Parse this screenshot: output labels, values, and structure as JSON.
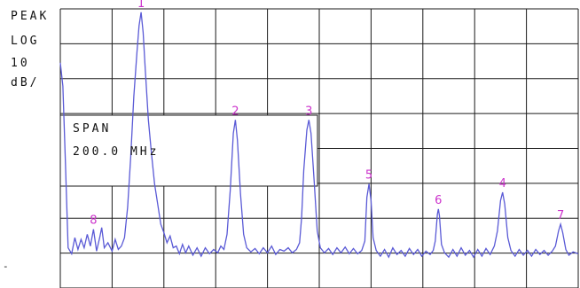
{
  "display": {
    "detector_label": "PEAK",
    "scale_label": "LOG",
    "scale_value": "10",
    "scale_unit": "dB/",
    "span_label": "SPAN",
    "span_value": "200.0 MHz",
    "reference_dash": "-"
  },
  "colors": {
    "background": "#ffffff",
    "grid": "#1a1a1a",
    "trace": "#5a5ad6",
    "marker": "#cc33cc"
  },
  "chart_data": {
    "type": "line",
    "title": "",
    "xlabel": "",
    "ylabel": "",
    "scale": "log 10 dB/div",
    "span": "200.0 MHz",
    "divisions": {
      "x": 10,
      "y": 8
    },
    "x_range_div": [
      0,
      10
    ],
    "y_range_div": [
      0,
      8
    ],
    "grid": true,
    "series": [
      {
        "points": [
          [
            0.0,
            5.8
          ],
          [
            0.05,
            5.1
          ],
          [
            0.1,
            2.8
          ],
          [
            0.15,
            0.3
          ],
          [
            0.22,
            0.12
          ],
          [
            0.28,
            0.6
          ],
          [
            0.34,
            0.25
          ],
          [
            0.4,
            0.55
          ],
          [
            0.46,
            0.3
          ],
          [
            0.52,
            0.7
          ],
          [
            0.58,
            0.35
          ],
          [
            0.64,
            0.85
          ],
          [
            0.7,
            0.2
          ],
          [
            0.76,
            0.6
          ],
          [
            0.8,
            0.9
          ],
          [
            0.85,
            0.3
          ],
          [
            0.92,
            0.45
          ],
          [
            1.0,
            0.2
          ],
          [
            1.06,
            0.55
          ],
          [
            1.12,
            0.25
          ],
          [
            1.18,
            0.35
          ],
          [
            1.24,
            0.6
          ],
          [
            1.3,
            1.5
          ],
          [
            1.36,
            3.0
          ],
          [
            1.42,
            4.8
          ],
          [
            1.48,
            6.1
          ],
          [
            1.52,
            6.9
          ],
          [
            1.56,
            7.3
          ],
          [
            1.6,
            6.7
          ],
          [
            1.64,
            5.6
          ],
          [
            1.7,
            4.1
          ],
          [
            1.76,
            3.1
          ],
          [
            1.82,
            2.2
          ],
          [
            1.88,
            1.6
          ],
          [
            1.94,
            1.0
          ],
          [
            2.0,
            0.75
          ],
          [
            2.06,
            0.45
          ],
          [
            2.12,
            0.65
          ],
          [
            2.18,
            0.3
          ],
          [
            2.24,
            0.35
          ],
          [
            2.3,
            0.12
          ],
          [
            2.36,
            0.4
          ],
          [
            2.42,
            0.15
          ],
          [
            2.48,
            0.35
          ],
          [
            2.56,
            0.08
          ],
          [
            2.64,
            0.3
          ],
          [
            2.72,
            0.05
          ],
          [
            2.8,
            0.3
          ],
          [
            2.88,
            0.12
          ],
          [
            2.96,
            0.25
          ],
          [
            3.04,
            0.15
          ],
          [
            3.1,
            0.35
          ],
          [
            3.16,
            0.25
          ],
          [
            3.22,
            0.7
          ],
          [
            3.28,
            2.0
          ],
          [
            3.34,
            3.7
          ],
          [
            3.38,
            4.1
          ],
          [
            3.42,
            3.5
          ],
          [
            3.48,
            1.9
          ],
          [
            3.54,
            0.7
          ],
          [
            3.6,
            0.3
          ],
          [
            3.68,
            0.18
          ],
          [
            3.76,
            0.28
          ],
          [
            3.84,
            0.12
          ],
          [
            3.92,
            0.3
          ],
          [
            4.0,
            0.15
          ],
          [
            4.08,
            0.35
          ],
          [
            4.16,
            0.1
          ],
          [
            4.24,
            0.25
          ],
          [
            4.32,
            0.2
          ],
          [
            4.4,
            0.3
          ],
          [
            4.48,
            0.15
          ],
          [
            4.56,
            0.25
          ],
          [
            4.62,
            0.45
          ],
          [
            4.66,
            1.2
          ],
          [
            4.7,
            2.6
          ],
          [
            4.76,
            3.8
          ],
          [
            4.8,
            4.1
          ],
          [
            4.84,
            3.7
          ],
          [
            4.9,
            2.3
          ],
          [
            4.96,
            0.8
          ],
          [
            5.02,
            0.3
          ],
          [
            5.1,
            0.15
          ],
          [
            5.18,
            0.28
          ],
          [
            5.26,
            0.1
          ],
          [
            5.34,
            0.3
          ],
          [
            5.42,
            0.15
          ],
          [
            5.5,
            0.32
          ],
          [
            5.58,
            0.12
          ],
          [
            5.66,
            0.28
          ],
          [
            5.74,
            0.12
          ],
          [
            5.82,
            0.22
          ],
          [
            5.88,
            0.5
          ],
          [
            5.92,
            1.8
          ],
          [
            5.96,
            2.2
          ],
          [
            6.0,
            1.7
          ],
          [
            6.04,
            0.6
          ],
          [
            6.1,
            0.22
          ],
          [
            6.18,
            0.05
          ],
          [
            6.26,
            0.25
          ],
          [
            6.34,
            0.02
          ],
          [
            6.42,
            0.3
          ],
          [
            6.5,
            0.1
          ],
          [
            6.58,
            0.22
          ],
          [
            6.66,
            0.05
          ],
          [
            6.74,
            0.28
          ],
          [
            6.82,
            0.1
          ],
          [
            6.9,
            0.25
          ],
          [
            6.98,
            0.05
          ],
          [
            7.06,
            0.2
          ],
          [
            7.14,
            0.1
          ],
          [
            7.2,
            0.22
          ],
          [
            7.24,
            0.5
          ],
          [
            7.28,
            1.3
          ],
          [
            7.3,
            1.45
          ],
          [
            7.32,
            1.25
          ],
          [
            7.36,
            0.4
          ],
          [
            7.42,
            0.15
          ],
          [
            7.5,
            0.02
          ],
          [
            7.58,
            0.25
          ],
          [
            7.66,
            0.05
          ],
          [
            7.74,
            0.3
          ],
          [
            7.82,
            0.08
          ],
          [
            7.9,
            0.22
          ],
          [
            7.98,
            0.02
          ],
          [
            8.06,
            0.25
          ],
          [
            8.14,
            0.05
          ],
          [
            8.22,
            0.28
          ],
          [
            8.3,
            0.1
          ],
          [
            8.38,
            0.35
          ],
          [
            8.44,
            0.8
          ],
          [
            8.5,
            1.7
          ],
          [
            8.54,
            1.95
          ],
          [
            8.58,
            1.6
          ],
          [
            8.64,
            0.6
          ],
          [
            8.7,
            0.22
          ],
          [
            8.78,
            0.05
          ],
          [
            8.86,
            0.25
          ],
          [
            8.94,
            0.08
          ],
          [
            9.02,
            0.22
          ],
          [
            9.1,
            0.05
          ],
          [
            9.18,
            0.25
          ],
          [
            9.26,
            0.1
          ],
          [
            9.34,
            0.22
          ],
          [
            9.42,
            0.08
          ],
          [
            9.5,
            0.2
          ],
          [
            9.56,
            0.35
          ],
          [
            9.62,
            0.8
          ],
          [
            9.66,
            1.0
          ],
          [
            9.7,
            0.75
          ],
          [
            9.76,
            0.25
          ],
          [
            9.82,
            0.08
          ],
          [
            9.9,
            0.18
          ],
          [
            10.0,
            0.12
          ]
        ]
      }
    ],
    "markers": [
      {
        "label": "1",
        "x": 1.56,
        "y": 7.3
      },
      {
        "label": "2",
        "x": 3.38,
        "y": 4.1
      },
      {
        "label": "3",
        "x": 4.8,
        "y": 4.1
      },
      {
        "label": "4",
        "x": 8.54,
        "y": 1.95
      },
      {
        "label": "5",
        "x": 5.96,
        "y": 2.2
      },
      {
        "label": "6",
        "x": 7.3,
        "y": 1.45
      },
      {
        "label": "7",
        "x": 9.66,
        "y": 1.0
      },
      {
        "label": "8",
        "x": 0.64,
        "y": 0.85
      }
    ]
  }
}
